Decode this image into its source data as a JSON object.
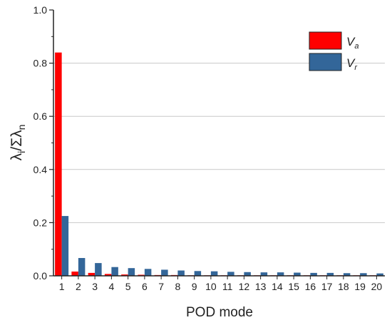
{
  "chart_data": {
    "type": "bar",
    "categories": [
      "1",
      "2",
      "3",
      "4",
      "5",
      "6",
      "7",
      "8",
      "9",
      "10",
      "11",
      "12",
      "13",
      "14",
      "15",
      "16",
      "17",
      "18",
      "19",
      "20"
    ],
    "series": [
      {
        "name": "Va",
        "name_main": "V",
        "name_sub": "a",
        "color": "#ff0000",
        "values": [
          0.84,
          0.016,
          0.011,
          0.007,
          0.005,
          0.004,
          0.003,
          0.003,
          0.002,
          0.002,
          0.002,
          0.002,
          0.002,
          0.002,
          0.002,
          0.002,
          0.002,
          0.002,
          0.002,
          0.002
        ]
      },
      {
        "name": "Vr",
        "name_main": "V",
        "name_sub": "r",
        "color": "#336699",
        "values": [
          0.225,
          0.067,
          0.048,
          0.033,
          0.029,
          0.026,
          0.023,
          0.02,
          0.018,
          0.017,
          0.015,
          0.014,
          0.013,
          0.013,
          0.012,
          0.011,
          0.011,
          0.01,
          0.01,
          0.009
        ]
      }
    ],
    "xlabel": "POD mode",
    "ylabel_main": "λ",
    "ylabel_sub1": "i",
    "ylabel_mid": "/Σλ",
    "ylabel_sub2": "n",
    "ylim": [
      0.0,
      1.0
    ],
    "yticks": [
      "0.0",
      "0.2",
      "0.4",
      "0.6",
      "0.8",
      "1.0"
    ],
    "yticks_values": [
      0.0,
      0.2,
      0.4,
      0.6,
      0.8,
      1.0
    ],
    "grid": "horizontal",
    "legend_position": "top-right"
  }
}
